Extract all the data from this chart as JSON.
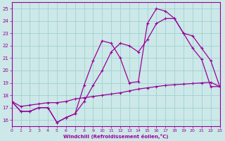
{
  "xlabel": "Windchill (Refroidissement éolien,°C)",
  "bg_color": "#cce8e8",
  "line_color": "#990099",
  "grid_color": "#99cccc",
  "xmin": 0,
  "xmax": 23,
  "ymin": 15.5,
  "ymax": 25.5,
  "yticks": [
    16,
    17,
    18,
    19,
    20,
    21,
    22,
    23,
    24,
    25
  ],
  "xticks": [
    0,
    1,
    2,
    3,
    4,
    5,
    6,
    7,
    8,
    9,
    10,
    11,
    12,
    13,
    14,
    15,
    16,
    17,
    18,
    19,
    20,
    21,
    22,
    23
  ],
  "line1_x": [
    0,
    1,
    2,
    3,
    4,
    5,
    6,
    7,
    8,
    9,
    10,
    11,
    12,
    13,
    14,
    15,
    16,
    17,
    18,
    19,
    20,
    21,
    22,
    23
  ],
  "line1_y": [
    17.5,
    16.7,
    16.7,
    17.0,
    17.0,
    15.8,
    16.2,
    16.5,
    18.8,
    20.8,
    22.4,
    22.2,
    21.0,
    19.0,
    19.1,
    23.8,
    25.0,
    24.8,
    24.2,
    23.0,
    21.8,
    20.9,
    18.7,
    18.7
  ],
  "line2_x": [
    0,
    1,
    2,
    3,
    4,
    5,
    6,
    7,
    8,
    9,
    10,
    11,
    12,
    13,
    14,
    15,
    16,
    17,
    18,
    19,
    20,
    21,
    22,
    23
  ],
  "line2_y": [
    17.5,
    16.7,
    16.7,
    17.0,
    17.0,
    15.8,
    16.2,
    16.5,
    17.5,
    18.8,
    20.0,
    21.5,
    22.2,
    22.0,
    21.5,
    22.5,
    23.8,
    24.2,
    24.2,
    23.0,
    22.8,
    21.8,
    20.8,
    18.7
  ],
  "line3_x": [
    0,
    1,
    2,
    3,
    4,
    5,
    6,
    7,
    8,
    9,
    10,
    11,
    12,
    13,
    14,
    15,
    16,
    17,
    18,
    19,
    20,
    21,
    22,
    23
  ],
  "line3_y": [
    17.5,
    17.1,
    17.2,
    17.3,
    17.4,
    17.4,
    17.5,
    17.7,
    17.8,
    17.9,
    18.0,
    18.1,
    18.2,
    18.35,
    18.5,
    18.6,
    18.7,
    18.8,
    18.85,
    18.9,
    18.95,
    19.0,
    19.05,
    18.7
  ]
}
